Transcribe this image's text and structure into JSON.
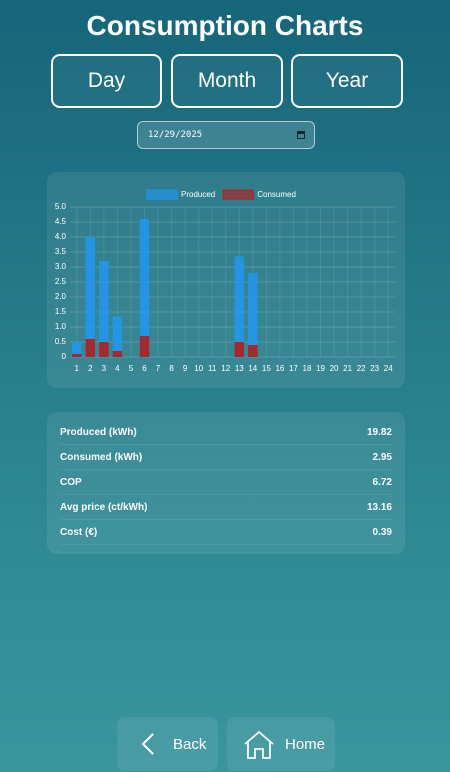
{
  "header": {
    "title": "Consumption Charts"
  },
  "tabs": [
    "Day",
    "Month",
    "Year"
  ],
  "date": "12/29/2025",
  "chart_data": {
    "type": "bar",
    "categories": [
      "1",
      "2",
      "3",
      "4",
      "5",
      "6",
      "7",
      "8",
      "9",
      "10",
      "11",
      "12",
      "13",
      "14",
      "15",
      "16",
      "17",
      "18",
      "19",
      "20",
      "21",
      "22",
      "23",
      "24"
    ],
    "series": [
      {
        "name": "Produced",
        "color": "#2196f3",
        "values": [
          0.5,
          4.0,
          3.2,
          1.35,
          0,
          4.6,
          0,
          0,
          0,
          0,
          0,
          0,
          3.35,
          2.8,
          0,
          0,
          0,
          0,
          0,
          0,
          0,
          0,
          0,
          0
        ]
      },
      {
        "name": "Consumed",
        "color": "#b71c1c",
        "values": [
          0.1,
          0.6,
          0.5,
          0.2,
          0,
          0.7,
          0,
          0,
          0,
          0,
          0,
          0,
          0.5,
          0.4,
          0,
          0,
          0,
          0,
          0,
          0,
          0,
          0,
          0,
          0
        ]
      }
    ],
    "ylim": [
      0,
      5
    ],
    "yticks": [
      0,
      0.5,
      {
        "value": 1,
        "label": "1.0"
      },
      1.5,
      {
        "value": 2,
        "label": "2.0"
      },
      2.5,
      {
        "value": 3,
        "label": "3.0"
      },
      3.5,
      {
        "value": 4,
        "label": "4.0"
      },
      4.5,
      {
        "value": 5,
        "label": "5.0"
      }
    ],
    "grid": true,
    "legend": "top"
  },
  "table": {
    "rows": [
      [
        "Produced (kWh)",
        19.82
      ],
      [
        "Consumed (kWh)",
        2.95
      ],
      [
        "COP",
        6.72
      ],
      [
        "Avg price (ct/kWh)",
        13.16
      ],
      [
        "Cost (€)",
        0.39
      ]
    ]
  },
  "nav": {
    "back": "Back",
    "home": "Home"
  }
}
